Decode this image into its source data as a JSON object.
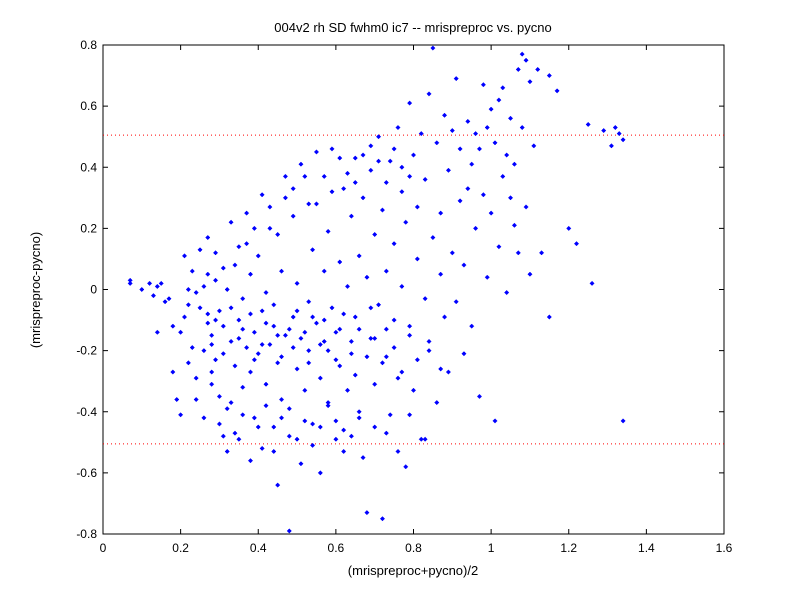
{
  "chart_data": {
    "type": "scatter",
    "title": "004v2 rh SD fwhm0 ic7 -- mrispreproc vs. pycno",
    "xlabel": "(mrispreproc+pycno)/2",
    "ylabel": "(mrispreproc-pycno)",
    "xlim": [
      0,
      1.6
    ],
    "ylim": [
      -0.8,
      0.8
    ],
    "x_ticks": [
      "0",
      "0.2",
      "0.4",
      "0.6",
      "0.8",
      "1",
      "1.2",
      "1.4",
      "1.6"
    ],
    "y_ticks": [
      "0.8",
      "0.6",
      "0.4",
      "0.2",
      "0",
      "-0.2",
      "-0.4",
      "-0.6",
      "-0.8"
    ],
    "grid": false,
    "marker_color": "#0000ff",
    "reference_lines": [
      {
        "y": 0.505,
        "color": "#ff0000",
        "style": "dotted"
      },
      {
        "y": -0.505,
        "color": "#ff0000",
        "style": "dotted"
      }
    ],
    "series": [
      {
        "points": [
          [
            0.07,
            0.03
          ],
          [
            0.07,
            0.02
          ],
          [
            0.1,
            0.0
          ],
          [
            0.12,
            0.02
          ],
          [
            0.13,
            -0.02
          ],
          [
            0.14,
            0.01
          ],
          [
            0.15,
            0.02
          ],
          [
            0.16,
            -0.04
          ],
          [
            0.14,
            -0.14
          ],
          [
            0.17,
            -0.03
          ],
          [
            0.18,
            -0.12
          ],
          [
            0.18,
            -0.27
          ],
          [
            0.19,
            -0.36
          ],
          [
            0.2,
            -0.41
          ],
          [
            0.2,
            -0.14
          ],
          [
            0.21,
            -0.09
          ],
          [
            0.22,
            -0.05
          ],
          [
            0.22,
            0.0
          ],
          [
            0.23,
            -0.19
          ],
          [
            0.24,
            -0.29
          ],
          [
            0.24,
            -0.01
          ],
          [
            0.25,
            -0.06
          ],
          [
            0.26,
            -0.2
          ],
          [
            0.26,
            0.01
          ],
          [
            0.27,
            -0.11
          ],
          [
            0.27,
            0.05
          ],
          [
            0.28,
            -0.31
          ],
          [
            0.28,
            -0.15
          ],
          [
            0.29,
            -0.23
          ],
          [
            0.29,
            0.03
          ],
          [
            0.3,
            -0.07
          ],
          [
            0.3,
            -0.35
          ],
          [
            0.31,
            -0.48
          ],
          [
            0.31,
            -0.12
          ],
          [
            0.32,
            -0.53
          ],
          [
            0.32,
            0.0
          ],
          [
            0.33,
            -0.37
          ],
          [
            0.33,
            -0.17
          ],
          [
            0.34,
            -0.25
          ],
          [
            0.34,
            0.08
          ],
          [
            0.35,
            -0.49
          ],
          [
            0.35,
            -0.1
          ],
          [
            0.36,
            -0.32
          ],
          [
            0.36,
            -0.03
          ],
          [
            0.37,
            0.15
          ],
          [
            0.37,
            -0.19
          ],
          [
            0.38,
            -0.27
          ],
          [
            0.38,
            0.05
          ],
          [
            0.39,
            -0.42
          ],
          [
            0.39,
            -0.14
          ],
          [
            0.4,
            -0.21
          ],
          [
            0.4,
            0.11
          ],
          [
            0.41,
            -0.52
          ],
          [
            0.41,
            -0.07
          ],
          [
            0.42,
            -0.31
          ],
          [
            0.42,
            -0.01
          ],
          [
            0.43,
            -0.18
          ],
          [
            0.43,
            0.2
          ],
          [
            0.44,
            -0.45
          ],
          [
            0.44,
            -0.12
          ],
          [
            0.45,
            -0.64
          ],
          [
            0.45,
            -0.24
          ],
          [
            0.46,
            0.06
          ],
          [
            0.46,
            -0.36
          ],
          [
            0.47,
            -0.15
          ],
          [
            0.47,
            0.3
          ],
          [
            0.48,
            -0.79
          ],
          [
            0.48,
            -0.48
          ],
          [
            0.49,
            -0.09
          ],
          [
            0.49,
            0.24
          ],
          [
            0.5,
            -0.26
          ],
          [
            0.5,
            0.02
          ],
          [
            0.51,
            -0.57
          ],
          [
            0.51,
            -0.16
          ],
          [
            0.52,
            0.37
          ],
          [
            0.52,
            -0.33
          ],
          [
            0.53,
            -0.04
          ],
          [
            0.53,
            -0.2
          ],
          [
            0.54,
            0.13
          ],
          [
            0.54,
            -0.44
          ],
          [
            0.55,
            0.28
          ],
          [
            0.55,
            -0.11
          ],
          [
            0.56,
            -0.6
          ],
          [
            0.56,
            -0.29
          ],
          [
            0.57,
            0.06
          ],
          [
            0.57,
            -0.17
          ],
          [
            0.58,
            0.19
          ],
          [
            0.58,
            -0.38
          ],
          [
            0.59,
            -0.06
          ],
          [
            0.59,
            0.46
          ],
          [
            0.6,
            -0.49
          ],
          [
            0.6,
            -0.23
          ],
          [
            0.61,
            0.09
          ],
          [
            0.61,
            -0.13
          ],
          [
            0.62,
            0.33
          ],
          [
            0.62,
            -0.53
          ],
          [
            0.63,
            -0.33
          ],
          [
            0.63,
            0.01
          ],
          [
            0.64,
            0.24
          ],
          [
            0.64,
            -0.21
          ],
          [
            0.65,
            0.43
          ],
          [
            0.65,
            -0.09
          ],
          [
            0.66,
            -0.4
          ],
          [
            0.66,
            0.11
          ],
          [
            0.67,
            -0.55
          ],
          [
            0.67,
            0.3
          ],
          [
            0.68,
            -0.73
          ],
          [
            0.68,
            0.04
          ],
          [
            0.69,
            0.39
          ],
          [
            0.69,
            -0.16
          ],
          [
            0.7,
            0.18
          ],
          [
            0.7,
            -0.31
          ],
          [
            0.71,
            0.5
          ],
          [
            0.71,
            -0.05
          ],
          [
            0.72,
            -0.75
          ],
          [
            0.72,
            0.26
          ],
          [
            0.73,
            0.06
          ],
          [
            0.73,
            -0.22
          ],
          [
            0.74,
            0.42
          ],
          [
            0.74,
            -0.41
          ],
          [
            0.75,
            0.15
          ],
          [
            0.75,
            -0.1
          ],
          [
            0.76,
            0.53
          ],
          [
            0.76,
            -0.29
          ],
          [
            0.77,
            0.32
          ],
          [
            0.77,
            0.01
          ],
          [
            0.78,
            -0.58
          ],
          [
            0.78,
            0.22
          ],
          [
            0.79,
            0.61
          ],
          [
            0.79,
            -0.12
          ],
          [
            0.8,
            0.44
          ],
          [
            0.8,
            -0.33
          ],
          [
            0.81,
            0.1
          ],
          [
            0.81,
            0.27
          ],
          [
            0.82,
            -0.49
          ],
          [
            0.82,
            0.51
          ],
          [
            0.83,
            -0.03
          ],
          [
            0.83,
            0.36
          ],
          [
            0.84,
            0.64
          ],
          [
            0.84,
            -0.2
          ],
          [
            0.85,
            0.79
          ],
          [
            0.85,
            0.17
          ],
          [
            0.86,
            -0.37
          ],
          [
            0.86,
            0.48
          ],
          [
            0.87,
            0.05
          ],
          [
            0.87,
            0.25
          ],
          [
            0.88,
            0.57
          ],
          [
            0.88,
            -0.09
          ],
          [
            0.89,
            0.39
          ],
          [
            0.89,
            -0.27
          ],
          [
            0.9,
            0.12
          ],
          [
            0.9,
            0.52
          ],
          [
            0.91,
            0.69
          ],
          [
            0.91,
            -0.04
          ],
          [
            0.92,
            0.29
          ],
          [
            0.92,
            0.46
          ],
          [
            0.93,
            -0.21
          ],
          [
            0.93,
            0.08
          ],
          [
            0.94,
            0.55
          ],
          [
            0.94,
            0.33
          ],
          [
            0.95,
            0.41
          ],
          [
            0.95,
            -0.12
          ],
          [
            0.96,
            0.2
          ],
          [
            0.96,
            0.51
          ],
          [
            0.97,
            0.46
          ],
          [
            0.97,
            -0.35
          ],
          [
            0.98,
            0.67
          ],
          [
            0.98,
            0.31
          ],
          [
            0.99,
            0.53
          ],
          [
            0.99,
            0.04
          ],
          [
            1.0,
            0.59
          ],
          [
            1.0,
            0.25
          ],
          [
            1.01,
            -0.43
          ],
          [
            1.01,
            0.48
          ],
          [
            1.02,
            0.62
          ],
          [
            1.02,
            0.14
          ],
          [
            1.03,
            0.37
          ],
          [
            1.03,
            0.66
          ],
          [
            1.04,
            0.44
          ],
          [
            1.04,
            -0.01
          ],
          [
            1.05,
            0.3
          ],
          [
            1.05,
            0.56
          ],
          [
            1.06,
            0.21
          ],
          [
            1.06,
            0.41
          ],
          [
            1.07,
            0.72
          ],
          [
            1.07,
            0.12
          ],
          [
            1.08,
            0.77
          ],
          [
            1.08,
            0.53
          ],
          [
            1.09,
            0.27
          ],
          [
            1.09,
            0.75
          ],
          [
            1.1,
            0.68
          ],
          [
            1.1,
            0.05
          ],
          [
            1.11,
            0.47
          ],
          [
            1.12,
            0.72
          ],
          [
            1.13,
            0.12
          ],
          [
            1.15,
            0.7
          ],
          [
            1.15,
            -0.09
          ],
          [
            1.17,
            0.65
          ],
          [
            1.2,
            0.2
          ],
          [
            1.22,
            0.15
          ],
          [
            1.25,
            0.54
          ],
          [
            1.26,
            0.02
          ],
          [
            1.29,
            0.52
          ],
          [
            1.31,
            0.47
          ],
          [
            1.32,
            0.53
          ],
          [
            1.33,
            0.51
          ],
          [
            1.34,
            0.49
          ],
          [
            1.34,
            -0.43
          ],
          [
            0.21,
            0.11
          ],
          [
            0.23,
            0.06
          ],
          [
            0.25,
            0.13
          ],
          [
            0.27,
            0.17
          ],
          [
            0.29,
            0.12
          ],
          [
            0.31,
            0.07
          ],
          [
            0.33,
            0.22
          ],
          [
            0.35,
            0.14
          ],
          [
            0.37,
            0.25
          ],
          [
            0.39,
            0.2
          ],
          [
            0.41,
            0.31
          ],
          [
            0.43,
            0.27
          ],
          [
            0.45,
            0.18
          ],
          [
            0.47,
            0.37
          ],
          [
            0.49,
            0.33
          ],
          [
            0.51,
            0.41
          ],
          [
            0.53,
            0.28
          ],
          [
            0.55,
            0.45
          ],
          [
            0.57,
            0.37
          ],
          [
            0.59,
            0.32
          ],
          [
            0.61,
            0.43
          ],
          [
            0.63,
            0.38
          ],
          [
            0.65,
            0.35
          ],
          [
            0.67,
            0.44
          ],
          [
            0.69,
            0.47
          ],
          [
            0.71,
            0.42
          ],
          [
            0.73,
            0.35
          ],
          [
            0.75,
            0.46
          ],
          [
            0.77,
            0.4
          ],
          [
            0.79,
            0.37
          ],
          [
            0.22,
            -0.24
          ],
          [
            0.24,
            -0.36
          ],
          [
            0.26,
            -0.42
          ],
          [
            0.28,
            -0.27
          ],
          [
            0.3,
            -0.44
          ],
          [
            0.32,
            -0.39
          ],
          [
            0.34,
            -0.47
          ],
          [
            0.36,
            -0.41
          ],
          [
            0.38,
            -0.56
          ],
          [
            0.4,
            -0.45
          ],
          [
            0.42,
            -0.38
          ],
          [
            0.44,
            -0.53
          ],
          [
            0.46,
            -0.42
          ],
          [
            0.48,
            -0.39
          ],
          [
            0.5,
            -0.49
          ],
          [
            0.52,
            -0.43
          ],
          [
            0.54,
            -0.51
          ],
          [
            0.56,
            -0.45
          ],
          [
            0.58,
            -0.37
          ],
          [
            0.6,
            -0.43
          ],
          [
            0.62,
            -0.46
          ],
          [
            0.64,
            -0.48
          ],
          [
            0.66,
            -0.42
          ],
          [
            0.7,
            -0.45
          ],
          [
            0.73,
            -0.47
          ],
          [
            0.76,
            -0.53
          ],
          [
            0.79,
            -0.41
          ],
          [
            0.83,
            -0.49
          ],
          [
            0.27,
            -0.08
          ],
          [
            0.28,
            -0.18
          ],
          [
            0.29,
            -0.1
          ],
          [
            0.31,
            -0.21
          ],
          [
            0.33,
            -0.06
          ],
          [
            0.35,
            -0.16
          ],
          [
            0.36,
            -0.13
          ],
          [
            0.38,
            -0.08
          ],
          [
            0.39,
            -0.23
          ],
          [
            0.41,
            -0.18
          ],
          [
            0.42,
            -0.11
          ],
          [
            0.44,
            -0.05
          ],
          [
            0.45,
            -0.15
          ],
          [
            0.46,
            -0.22
          ],
          [
            0.48,
            -0.13
          ],
          [
            0.49,
            -0.19
          ],
          [
            0.5,
            -0.07
          ],
          [
            0.52,
            -0.14
          ],
          [
            0.53,
            -0.24
          ],
          [
            0.54,
            -0.09
          ],
          [
            0.56,
            -0.18
          ],
          [
            0.57,
            -0.1
          ],
          [
            0.58,
            -0.2
          ],
          [
            0.6,
            -0.14
          ],
          [
            0.61,
            -0.25
          ],
          [
            0.62,
            -0.08
          ],
          [
            0.64,
            -0.17
          ],
          [
            0.65,
            -0.28
          ],
          [
            0.66,
            -0.13
          ],
          [
            0.68,
            -0.22
          ],
          [
            0.69,
            -0.06
          ],
          [
            0.7,
            -0.16
          ],
          [
            0.72,
            -0.24
          ],
          [
            0.73,
            -0.13
          ],
          [
            0.75,
            -0.19
          ],
          [
            0.77,
            -0.27
          ],
          [
            0.79,
            -0.15
          ],
          [
            0.81,
            -0.23
          ],
          [
            0.84,
            -0.17
          ],
          [
            0.87,
            -0.26
          ]
        ]
      }
    ]
  }
}
